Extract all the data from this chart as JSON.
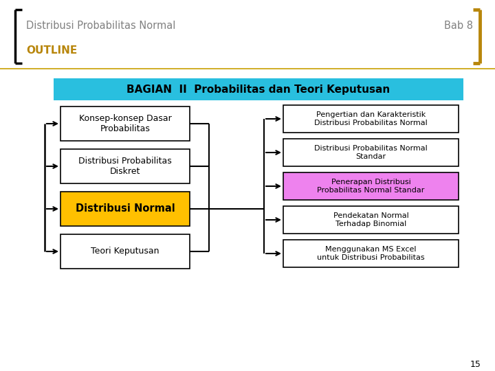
{
  "title_left": "Distribusi Probabilitas Normal",
  "title_right": "Bab 8",
  "outline_label": "OUTLINE",
  "header_text": "BAGIAN  II  Probabilitas dan Teori Keputusan",
  "header_bg": "#29BFDF",
  "header_text_color": "#000000",
  "left_boxes": [
    {
      "text": "Konsep-konsep Dasar\nProbabilitas",
      "bg": "#FFFFFF",
      "text_color": "#000000",
      "bold": false
    },
    {
      "text": "Distribusi Probabilitas\nDiskret",
      "bg": "#FFFFFF",
      "text_color": "#000000",
      "bold": false
    },
    {
      "text": "Distribusi Normal",
      "bg": "#FFC000",
      "text_color": "#000000",
      "bold": true
    },
    {
      "text": "Teori Keputusan",
      "bg": "#FFFFFF",
      "text_color": "#000000",
      "bold": false
    }
  ],
  "right_boxes": [
    {
      "text": "Pengertian dan Karakteristik\nDistribusi Probabilitas Normal",
      "bg": "#FFFFFF",
      "text_color": "#000000",
      "bold": false
    },
    {
      "text": "Distribusi Probabilitas Normal\nStandar",
      "bg": "#FFFFFF",
      "text_color": "#000000",
      "bold": false
    },
    {
      "text": "Penerapan Distribusi\nProbabilitas Normal Standar",
      "bg": "#EE82EE",
      "text_color": "#000000",
      "bold": false
    },
    {
      "text": "Pendekatan Normal\nTerhadap Binomial",
      "bg": "#FFFFFF",
      "text_color": "#000000",
      "bold": false
    },
    {
      "text": "Menggunakan MS Excel\nuntuk Distribusi Probabilitas",
      "bg": "#FFFFFF",
      "text_color": "#000000",
      "bold": false
    }
  ],
  "bg_color": "#FFFFFF",
  "title_color": "#808080",
  "bracket_color": "#000000",
  "gold_bracket_color": "#B8860B",
  "outline_color": "#B8860B",
  "page_number": "15",
  "separator_line_color": "#C8A000"
}
